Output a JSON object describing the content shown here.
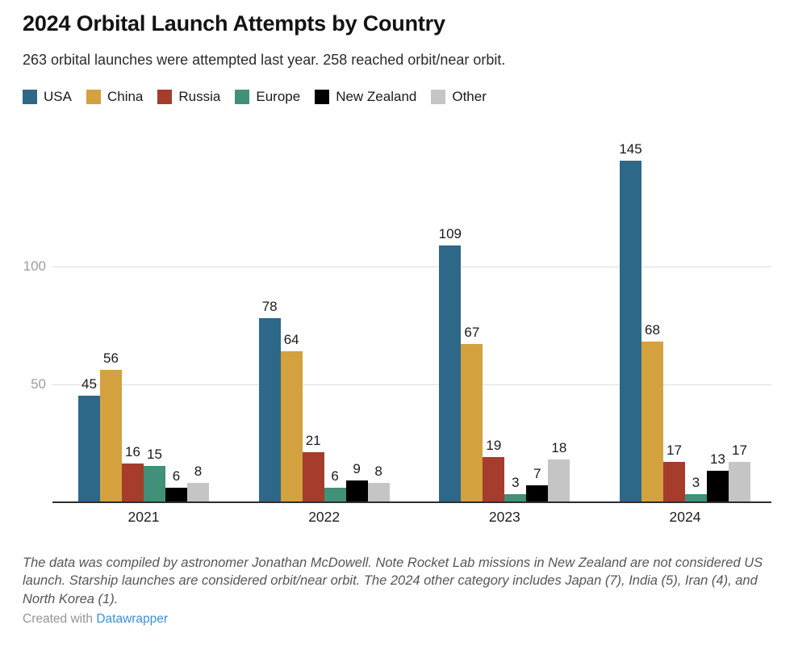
{
  "header": {
    "title": "2024 Orbital Launch Attempts by Country",
    "subtitle": "263 orbital launches were attempted last year. 258 reached orbit/near orbit."
  },
  "chart_data": {
    "type": "bar",
    "title": "2024 Orbital Launch Attempts by Country",
    "categories": [
      "2021",
      "2022",
      "2023",
      "2024"
    ],
    "series": [
      {
        "name": "USA",
        "color": "#2e6889",
        "values": [
          45,
          78,
          109,
          145
        ]
      },
      {
        "name": "China",
        "color": "#d3a13e",
        "values": [
          56,
          64,
          67,
          68
        ]
      },
      {
        "name": "Russia",
        "color": "#a53c2c",
        "values": [
          16,
          21,
          19,
          17
        ]
      },
      {
        "name": "Europe",
        "color": "#40907a",
        "values": [
          15,
          6,
          3,
          3
        ]
      },
      {
        "name": "New Zealand",
        "color": "#000000",
        "values": [
          6,
          9,
          7,
          13
        ]
      },
      {
        "name": "Other",
        "color": "#c5c5c5",
        "values": [
          8,
          8,
          18,
          17
        ]
      }
    ],
    "xlabel": "",
    "ylabel": "",
    "ylim": [
      0,
      158
    ],
    "yticks": [
      50,
      100
    ],
    "grid": "horizontal",
    "legend_position": "top",
    "value_labels": true
  },
  "colors": {
    "grid": "#dedede",
    "axis_line": "#2e2e2e",
    "tick_label": "#9d9d9d",
    "value_label": "#1a1a1a"
  },
  "notes": {
    "text": "The data was compiled by astronomer Jonathan McDowell. Note Rocket Lab missions in New Zealand are not considered US launch. Starship launches are considered orbit/near orbit. The 2024 other category includes Japan (7), India (5), Iran (4), and North Korea (1)."
  },
  "attribution": {
    "prefix": "Created with ",
    "link_text": "Datawrapper",
    "link_color": "#3b8fd8"
  }
}
